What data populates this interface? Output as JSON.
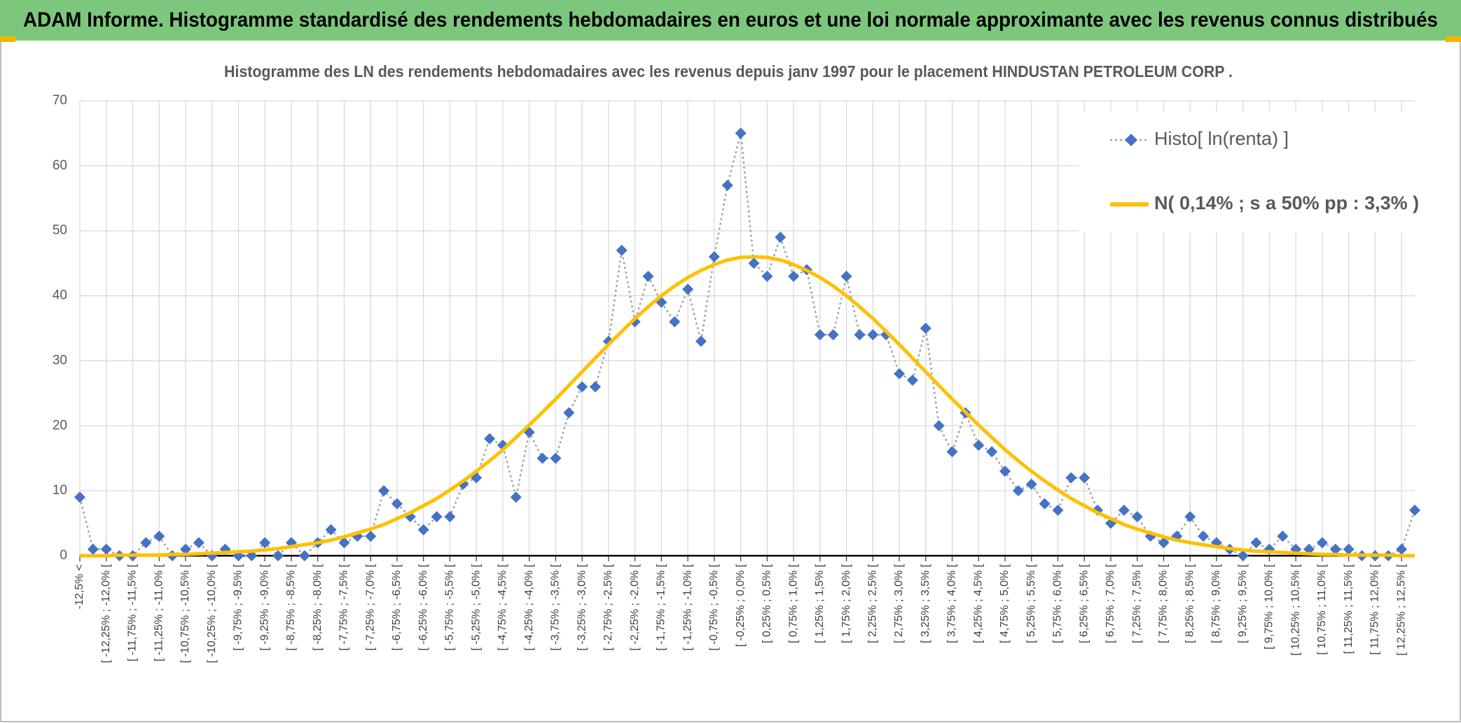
{
  "header": "ADAM Informe. Histogramme standardisé des rendements hebdomadaires en euros et une loi normale approximante avec les revenus connus distribués",
  "chart_data": {
    "type": "line",
    "title": "Histogramme des LN des rendements hebdomadaires avec les revenus depuis janv 1997 pour le placement HINDUSTAN PETROLEUM CORP .",
    "categories": [
      "-12,5% <",
      null,
      "[ -12,25% ; -12,0% [",
      null,
      "[ -11,75% ; -11,5% [",
      null,
      "[ -11,25% ; -11,0% [",
      null,
      "[ -10,75% ; -10,5% [",
      null,
      "[ -10,25% ; -10,0% [",
      null,
      "[ -9,75% ; -9,5% [",
      null,
      "[ -9,25% ; -9,0% [",
      null,
      "[ -8,75% ; -8,5% [",
      null,
      "[ -8,25% ; -8,0% [",
      null,
      "[ -7,75% ; -7,5% [",
      null,
      "[ -7,25% ; -7,0% [",
      null,
      "[ -6,75% ; -6,5% [",
      null,
      "[ -6,25% ; -6,0% [",
      null,
      "[ -5,75% ; -5,5% [",
      null,
      "[ -5,25% ; -5,0% [",
      null,
      "[ -4,75% ; -4,5% [",
      null,
      "[ -4,25% ; -4,0% [",
      null,
      "[ -3,75% ; -3,5% [",
      null,
      "[ -3,25% ; -3,0% [",
      null,
      "[ -2,75% ; -2,5% [",
      null,
      "[ -2,25% ; -2,0% [",
      null,
      "[ -1,75% ; -1,5% [",
      null,
      "[ -1,25% ; -1,0% [",
      null,
      "[ -0,75% ; -0,5% [",
      null,
      "[ -0,25% ; 0,0% [",
      null,
      "[ 0,25% ; 0,5% [",
      null,
      "[ 0,75% ; 1,0% [",
      null,
      "[ 1,25% ; 1,5% [",
      null,
      "[ 1,75% ; 2,0% [",
      null,
      "[ 2,25% ; 2,5% [",
      null,
      "[ 2,75% ; 3,0% [",
      null,
      "[ 3,25% ; 3,5% [",
      null,
      "[ 3,75% ; 4,0% [",
      null,
      "[ 4,25% ; 4,5% [",
      null,
      "[ 4,75% ; 5,0% [",
      null,
      "[ 5,25% ; 5,5% [",
      null,
      "[ 5,75% ; 6,0% [",
      null,
      "[ 6,25% ; 6,5% [",
      null,
      "[ 6,75% ; 7,0% [",
      null,
      "[ 7,25% ; 7,5% [",
      null,
      "[ 7,75% ; 8,0% [",
      null,
      "[ 8,25% ; 8,5% [",
      null,
      "[ 8,75% ; 9,0% [",
      null,
      "[ 9,25% ; 9,5% [",
      null,
      "[ 9,75% ; 10,0% [",
      null,
      "[ 10,25% ; 10,5% [",
      null,
      "[ 10,75% ; 11,0% [",
      null,
      "[ 11,25% ; 11,5% [",
      null,
      "[ 11,75% ; 12,0% [",
      null,
      "[ 12,25% ; 12,5% [",
      null
    ],
    "series": [
      {
        "name": "Histo[ ln(renta) ]",
        "color": "#4472c4",
        "line_color": "#a5a5a5",
        "line_style": "dotted",
        "marker": "diamond",
        "values": [
          9,
          1,
          1,
          0,
          0,
          2,
          3,
          0,
          1,
          2,
          0,
          1,
          0,
          0,
          2,
          0,
          2,
          0,
          2,
          4,
          2,
          3,
          3,
          10,
          8,
          6,
          4,
          6,
          6,
          11,
          12,
          18,
          17,
          9,
          19,
          15,
          15,
          22,
          26,
          26,
          33,
          47,
          36,
          43,
          39,
          36,
          41,
          33,
          46,
          57,
          65,
          45,
          43,
          49,
          43,
          44,
          34,
          34,
          43,
          34,
          34,
          34,
          28,
          27,
          35,
          20,
          16,
          22,
          17,
          16,
          13,
          10,
          11,
          8,
          7,
          12,
          12,
          7,
          5,
          7,
          6,
          3,
          2,
          3,
          6,
          3,
          2,
          1,
          0,
          2,
          1,
          3,
          1,
          1,
          2,
          1,
          1,
          0,
          0,
          0,
          1,
          7
        ]
      },
      {
        "name": "N( 0,14% ; s a 50% pp : 3,3% )",
        "color": "#ffc000",
        "line_style": "solid",
        "marker": "none",
        "values": [
          0,
          0,
          0,
          0.1,
          0.1,
          0.1,
          0.1,
          0.2,
          0.2,
          0.3,
          0.4,
          0.5,
          0.6,
          0.7,
          0.9,
          1.1,
          1.4,
          1.7,
          2.0,
          2.4,
          2.9,
          3.5,
          4.1,
          4.8,
          5.7,
          6.6,
          7.7,
          8.8,
          10.1,
          11.5,
          13.0,
          14.6,
          16.3,
          18.2,
          20.1,
          22.1,
          24.1,
          26.2,
          28.3,
          30.4,
          32.5,
          34.5,
          36.5,
          38.3,
          40.0,
          41.5,
          42.8,
          43.9,
          44.8,
          45.5,
          45.9,
          46.0,
          45.9,
          45.5,
          44.8,
          43.9,
          42.8,
          41.5,
          40.0,
          38.3,
          36.5,
          34.5,
          32.5,
          30.4,
          28.3,
          26.2,
          24.1,
          22.1,
          20.1,
          18.2,
          16.3,
          14.6,
          13.0,
          11.5,
          10.1,
          8.8,
          7.7,
          6.6,
          5.7,
          4.8,
          4.1,
          3.5,
          2.9,
          2.4,
          2.0,
          1.7,
          1.4,
          1.1,
          0.9,
          0.7,
          0.6,
          0.5,
          0.4,
          0.3,
          0.2,
          0.2,
          0.1,
          0.1,
          0.1,
          0.1,
          0,
          0
        ]
      }
    ],
    "ylim": [
      0,
      70
    ],
    "yticks": [
      0,
      10,
      20,
      30,
      40,
      50,
      60,
      70
    ],
    "grid": true,
    "legend": "upper right"
  }
}
